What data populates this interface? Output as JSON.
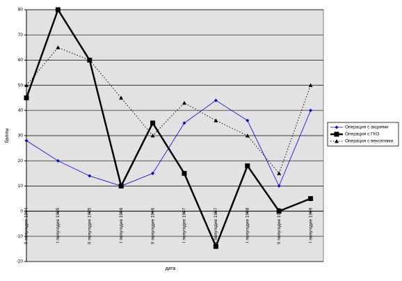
{
  "chart_data": {
    "type": "line",
    "categories": [
      "II полугодие 1994",
      "I полугодие 1995",
      "II полугодие 1995",
      "I полугодие 1996",
      "II полугодие 1996",
      "I полугодие 1997",
      "II полугодие 1997",
      "I полугодие 1998",
      "II полугодие 1998",
      "I полугодие 1999"
    ],
    "series": [
      {
        "name": "Операция с акциями",
        "color": "#0000cc",
        "marker": "diamond",
        "values": [
          28,
          20,
          14,
          10,
          15,
          35,
          44,
          36,
          10,
          40
        ]
      },
      {
        "name": "Операция с ГКО",
        "color": "#000000",
        "marker": "square",
        "values": [
          45,
          80,
          60,
          10,
          35,
          15,
          -14,
          18,
          0,
          5
        ]
      },
      {
        "name": "Операция с векселями",
        "color": "#000000",
        "marker": "triangle",
        "values": [
          50,
          65,
          60,
          45,
          30,
          43,
          36,
          30,
          15,
          50
        ]
      }
    ],
    "ylim": [
      -20,
      80
    ],
    "yticks": [
      -20,
      -10,
      0,
      10,
      20,
      30,
      40,
      50,
      60,
      70,
      80
    ],
    "ylabel": "баллы",
    "xlabel": "дата",
    "grid": true,
    "legend": "right",
    "plot_color": "#e4e1e4"
  }
}
